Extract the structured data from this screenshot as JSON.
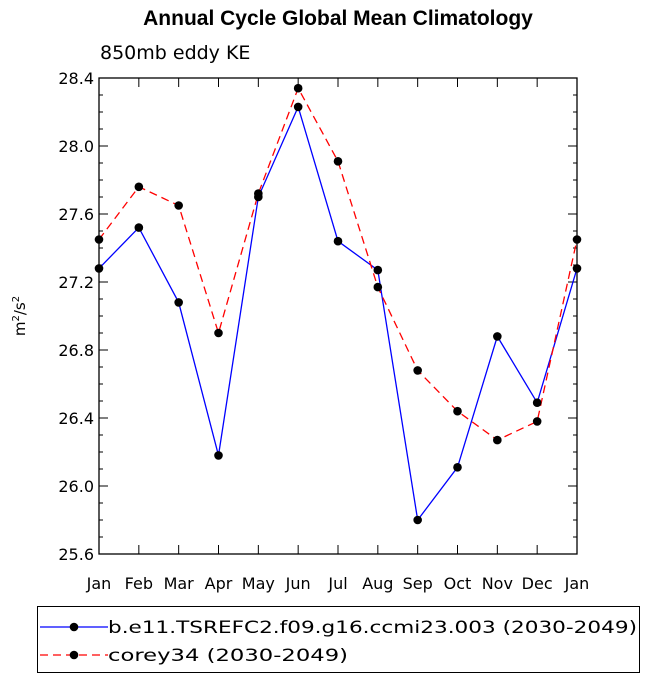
{
  "chart_data": {
    "type": "line",
    "title": "Annual Cycle Global Mean Climatology",
    "subtitle": "850mb eddy KE",
    "ylabel_base": "m",
    "ylabel_exp1": "2",
    "ylabel_mid": "/s",
    "ylabel_exp2": "2",
    "xlabel": "",
    "categories": [
      "Jan",
      "Feb",
      "Mar",
      "Apr",
      "May",
      "Jun",
      "Jul",
      "Aug",
      "Sep",
      "Oct",
      "Nov",
      "Dec",
      "Jan"
    ],
    "ylim": [
      25.6,
      28.4
    ],
    "yticks": [
      "25.6",
      "26.0",
      "26.4",
      "26.8",
      "27.2",
      "27.6",
      "28.0",
      "28.4"
    ],
    "grid": false,
    "legend_position": "bottom",
    "series": [
      {
        "name": "b.e11.TSREFC2.f09.g16.ccmi23.003 (2030-2049)",
        "color": "#0000ff",
        "dashed": false,
        "values": [
          27.28,
          27.52,
          27.08,
          26.18,
          27.7,
          28.23,
          27.44,
          27.27,
          25.8,
          26.11,
          26.88,
          26.49,
          27.28
        ]
      },
      {
        "name": "corey34 (2030-2049)",
        "color": "#ff0000",
        "dashed": true,
        "values": [
          27.45,
          27.76,
          27.65,
          26.9,
          27.72,
          28.34,
          27.91,
          27.17,
          26.68,
          26.44,
          26.27,
          26.38,
          27.45
        ]
      }
    ]
  }
}
